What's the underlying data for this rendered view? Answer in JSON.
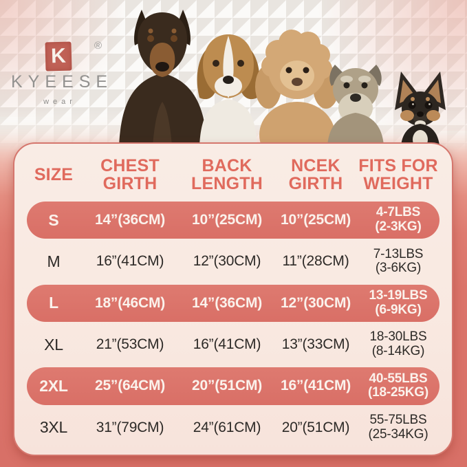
{
  "brand": {
    "logo_letter": "K",
    "registered_mark": "®",
    "name": "KYEESE",
    "tagline": "wear"
  },
  "hero": {
    "dogs": [
      "doberman",
      "beagle",
      "poodle",
      "schnauzer",
      "chihuahua"
    ]
  },
  "colors": {
    "accent_coral": "#dc746b",
    "accent_text": "#e06a5d",
    "card_bg": "#f9e9e1",
    "dark_text": "#2d2a27",
    "bg_bottom": "#d87067",
    "logo_red": "#c06156",
    "logo_gray": "#92918f"
  },
  "table": {
    "columns": [
      {
        "label": "SIZE",
        "key": "size"
      },
      {
        "label": "CHEST GIRTH",
        "key": "chest"
      },
      {
        "label": "BACK LENGTH",
        "key": "back"
      },
      {
        "label": "NCEK GIRTH",
        "key": "neck"
      },
      {
        "label": "FITS FOR WEIGHT",
        "key": "weight"
      }
    ],
    "rows": [
      {
        "size": "S",
        "chest": "14”(36CM)",
        "back": "10”(25CM)",
        "neck": "10”(25CM)",
        "weight1": "4-7LBS",
        "weight2": "(2-3KG)",
        "highlight": true
      },
      {
        "size": "M",
        "chest": "16”(41CM)",
        "back": "12”(30CM)",
        "neck": "11”(28CM)",
        "weight1": "7-13LBS",
        "weight2": "(3-6KG)",
        "highlight": false
      },
      {
        "size": "L",
        "chest": "18”(46CM)",
        "back": "14”(36CM)",
        "neck": "12”(30CM)",
        "weight1": "13-19LBS",
        "weight2": "(6-9KG)",
        "highlight": true
      },
      {
        "size": "XL",
        "chest": "21”(53CM)",
        "back": "16”(41CM)",
        "neck": "13”(33CM)",
        "weight1": "18-30LBS",
        "weight2": "(8-14KG)",
        "highlight": false
      },
      {
        "size": "2XL",
        "chest": "25”(64CM)",
        "back": "20”(51CM)",
        "neck": "16”(41CM)",
        "weight1": "40-55LBS",
        "weight2": "(18-25KG)",
        "highlight": true
      },
      {
        "size": "3XL",
        "chest": "31”(79CM)",
        "back": "24”(61CM)",
        "neck": "20”(51CM)",
        "weight1": "55-75LBS",
        "weight2": "(25-34KG)",
        "highlight": false
      }
    ]
  },
  "chart_data": {
    "type": "table",
    "title": "KYEESE wear dog apparel size chart",
    "columns": [
      "SIZE",
      "CHEST GIRTH",
      "BACK LENGTH",
      "NCEK GIRTH",
      "FITS FOR WEIGHT"
    ],
    "rows": [
      [
        "S",
        "14”(36CM)",
        "10”(25CM)",
        "10”(25CM)",
        "4-7LBS (2-3KG)"
      ],
      [
        "M",
        "16”(41CM)",
        "12”(30CM)",
        "11”(28CM)",
        "7-13LBS (3-6KG)"
      ],
      [
        "L",
        "18”(46CM)",
        "14”(36CM)",
        "12”(30CM)",
        "13-19LBS (6-9KG)"
      ],
      [
        "XL",
        "21”(53CM)",
        "16”(41CM)",
        "13”(33CM)",
        "18-30LBS (8-14KG)"
      ],
      [
        "2XL",
        "25”(64CM)",
        "20”(51CM)",
        "16”(41CM)",
        "40-55LBS (18-25KG)"
      ],
      [
        "3XL",
        "31”(79CM)",
        "24”(61CM)",
        "20”(51CM)",
        "55-75LBS (25-34KG)"
      ]
    ],
    "highlighted_rows": [
      "S",
      "L",
      "2XL"
    ],
    "layout_hints": {
      "highlight_style": "coral pill rows, white text",
      "plain_style": "cream rows, dark text"
    }
  }
}
